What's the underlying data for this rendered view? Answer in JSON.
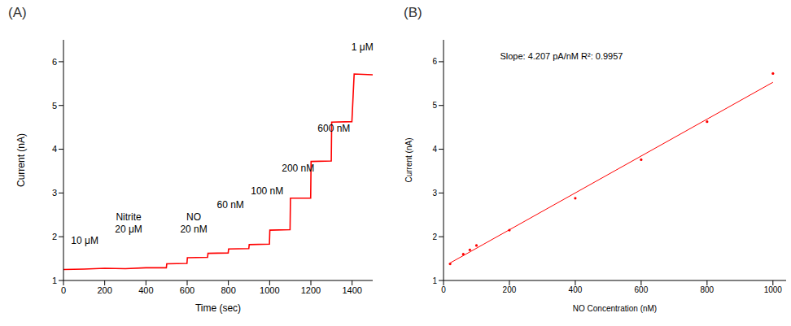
{
  "chart_data": [
    {
      "type": "line",
      "title": "(A)",
      "x_label": "Time (sec)",
      "y_label": "Current (nA)",
      "color": "#ff0000",
      "grid": false,
      "x": [
        0,
        100,
        200,
        300,
        400,
        499,
        501,
        599,
        601,
        699,
        701,
        799,
        801,
        899,
        901,
        999,
        1001,
        1099,
        1101,
        1199,
        1201,
        1299,
        1301,
        1399,
        1410,
        1500
      ],
      "values": [
        1.25,
        1.26,
        1.28,
        1.27,
        1.29,
        1.29,
        1.38,
        1.39,
        1.52,
        1.53,
        1.62,
        1.63,
        1.72,
        1.73,
        1.82,
        1.83,
        2.15,
        2.16,
        2.88,
        2.88,
        3.72,
        3.73,
        4.62,
        4.63,
        5.72,
        5.7
      ],
      "xlim": [
        0,
        1500
      ],
      "xticks": [
        0,
        200,
        400,
        600,
        800,
        1000,
        1200,
        1400
      ],
      "ylim": [
        1,
        6.5
      ],
      "yticks": [
        1,
        2,
        3,
        4,
        5,
        6
      ],
      "annotations": [
        {
          "text": [
            "10 μM"
          ],
          "x": 103,
          "y": 1.92
        },
        {
          "text": [
            "Nitrite",
            "20 μM"
          ],
          "x": 316,
          "y": 2.31
        },
        {
          "text": [
            "NO",
            "20 nM"
          ],
          "x": 632,
          "y": 2.31
        },
        {
          "text": [
            "60 nM"
          ],
          "x": 810,
          "y": 2.74
        },
        {
          "text": [
            "100 nM"
          ],
          "x": 988,
          "y": 3.04
        },
        {
          "text": [
            "200 nM"
          ],
          "x": 1138,
          "y": 3.57
        },
        {
          "text": [
            "600 nM"
          ],
          "x": 1312,
          "y": 4.48
        },
        {
          "text": [
            "1 μM"
          ],
          "x": 1450,
          "y": 6.33
        }
      ]
    },
    {
      "type": "scatter",
      "title": "(B)",
      "x_label": "NO Concentration (nM)",
      "y_label": "Current (nA)",
      "grid": false,
      "xlim": [
        0,
        1040
      ],
      "xticks": [
        0,
        200,
        400,
        600,
        800,
        1000
      ],
      "ylim": [
        1,
        6.5
      ],
      "yticks": [
        1,
        2,
        3,
        4,
        5,
        6
      ],
      "series": [
        {
          "type": "scatter",
          "marker": "circle",
          "color": "#ff0000",
          "x": [
            20,
            60,
            80,
            100,
            200,
            400,
            600,
            800,
            1000
          ],
          "values": [
            1.38,
            1.6,
            1.7,
            1.8,
            2.15,
            2.88,
            3.76,
            4.63,
            5.73
          ]
        },
        {
          "type": "line",
          "color": "#ff0000",
          "x": [
            20,
            1000
          ],
          "values": [
            1.4,
            5.53
          ]
        }
      ],
      "annotations": [
        {
          "text": [
            "Slope: 4.207 pA/nM R²: 0.9957"
          ],
          "x": 358,
          "y": 6.13
        }
      ]
    }
  ]
}
